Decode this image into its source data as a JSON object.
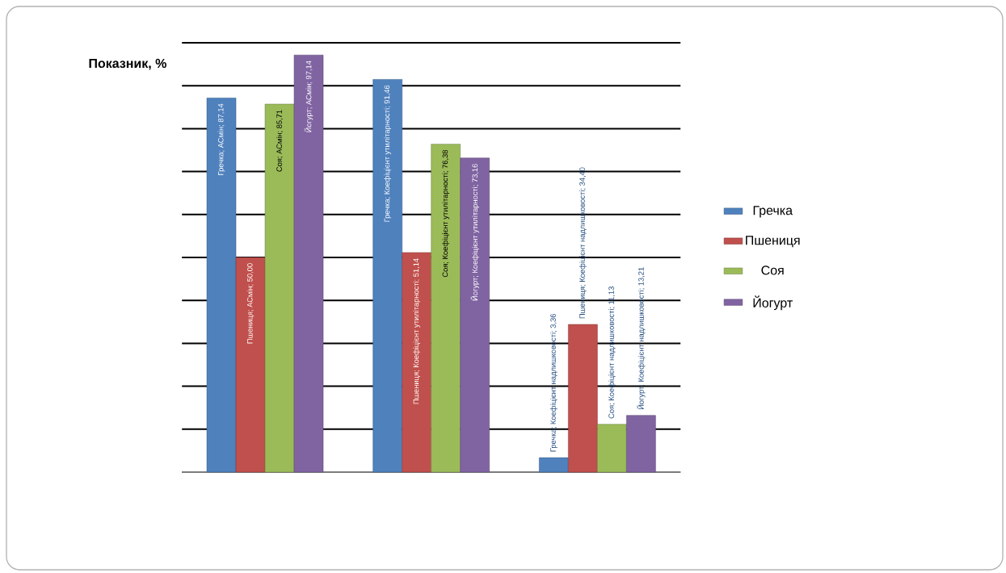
{
  "chart_data": {
    "type": "bar",
    "ylabel": "Показник, %",
    "categories": [
      null,
      null,
      null
    ],
    "series": [
      {
        "name": "Гречка",
        "color": "#4f81bd",
        "values": [
          87.14,
          91.46,
          3.36
        ],
        "value_labels": [
          "Гречка; АСмін; 87,14",
          "Гречка; Коефіцієнт утилітарності; 91,46",
          "Гречка; Коефіцієнт надлишковості; 3,36"
        ]
      },
      {
        "name": "Пшениця",
        "color": "#c0504d",
        "values": [
          50.0,
          51.14,
          34.4
        ],
        "value_labels": [
          "Пшениця; АСмін; 50,00",
          "Пшениця; Коефіцієнт утилітарності; 51,14",
          "Пшениця; Коефіцієнт надлишковості; 34,40"
        ]
      },
      {
        "name": "Соя",
        "color": "#9bbb59",
        "values": [
          85.71,
          76.38,
          11.13
        ],
        "value_labels": [
          "Соя; АСмін; 85,71",
          "Соя; Коефіцієнт утилітарності; 76,38",
          "Соя; Коефіцієнт надлишковості; 11,13"
        ]
      },
      {
        "name": "Йогурт",
        "color": "#8064a2",
        "values": [
          97.14,
          73.16,
          13.21
        ],
        "value_labels": [
          "Йогурт; АСмін; 97,14",
          "Йогурт; Коефіцієнт утилітарності; 73,16",
          "Йогурт; Коефіцієнт надлишковості; 13,21"
        ]
      }
    ],
    "ylim": [
      0,
      100
    ],
    "yticks": [
      {
        "value": 0,
        "label": null
      },
      {
        "value": 10,
        "label": null
      },
      {
        "value": 20,
        "label": null
      },
      {
        "value": 30,
        "label": null
      },
      {
        "value": 40,
        "label": null
      },
      {
        "value": 50,
        "label": null
      },
      {
        "value": 60,
        "label": null
      },
      {
        "value": 70,
        "label": null
      },
      {
        "value": 80,
        "label": null
      },
      {
        "value": 90,
        "label": null
      },
      {
        "value": 100,
        "label": null
      }
    ],
    "grid": "y",
    "legend": "right"
  }
}
